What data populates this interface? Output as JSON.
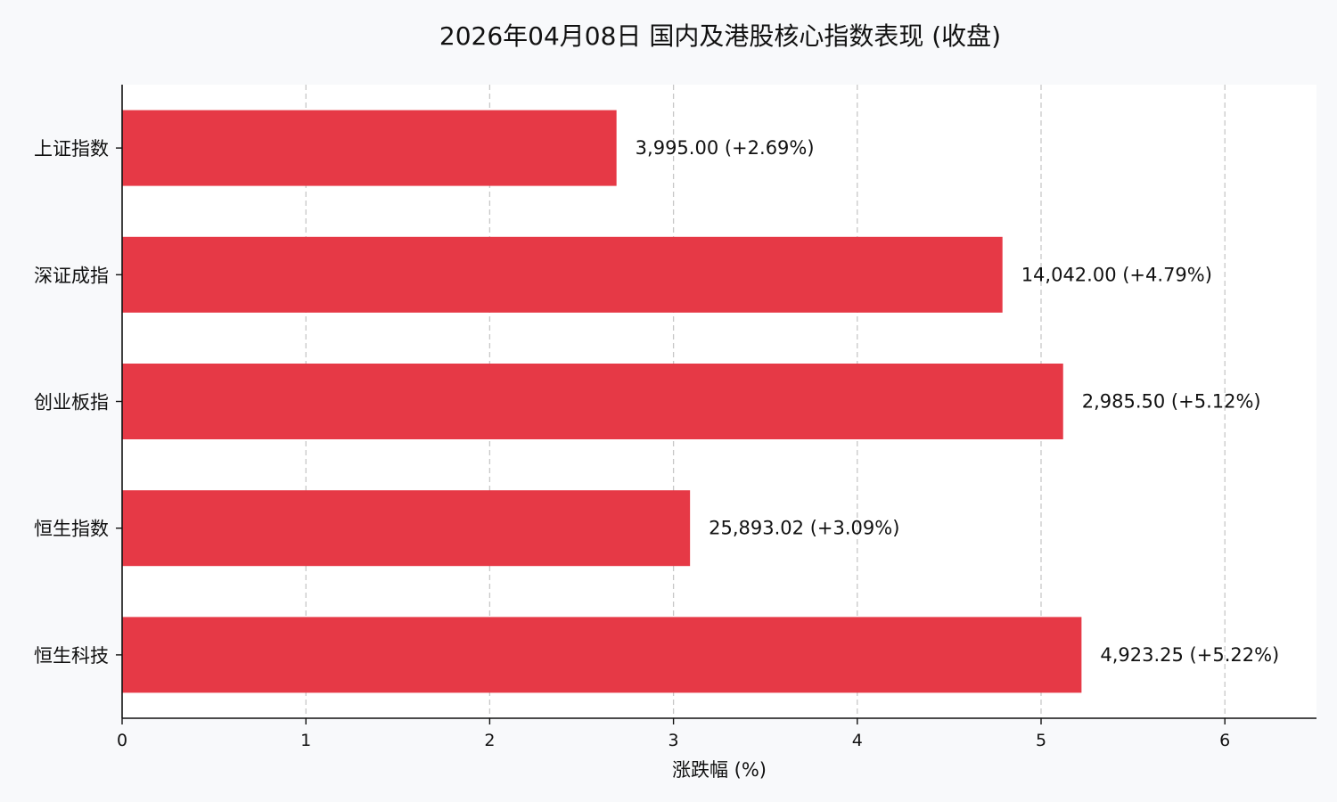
{
  "chart_data": {
    "type": "bar",
    "orientation": "horizontal",
    "title": "2026年04月08日 国内及港股核心指数表现 (收盘)",
    "xlabel": "涨跌幅 (%)",
    "ylabel": "",
    "xlim": [
      0,
      6.5
    ],
    "xticks": [
      "0",
      "1",
      "2",
      "3",
      "4",
      "5",
      "6"
    ],
    "grid": "x-dashed",
    "bar_color": "#e63946",
    "plot_background": "#ffffff",
    "page_background": "#f8f9fb",
    "categories": [
      "上证指数",
      "深证成指",
      "创业板指",
      "恒生指数",
      "恒生科技"
    ],
    "values": [
      2.69,
      4.79,
      5.12,
      3.09,
      5.22
    ],
    "data_labels": [
      "3,995.00 (+2.69%)",
      "14,042.00 (+4.79%)",
      "2,985.50 (+5.12%)",
      "25,893.02 (+3.09%)",
      "4,923.25 (+5.22%)"
    ]
  }
}
